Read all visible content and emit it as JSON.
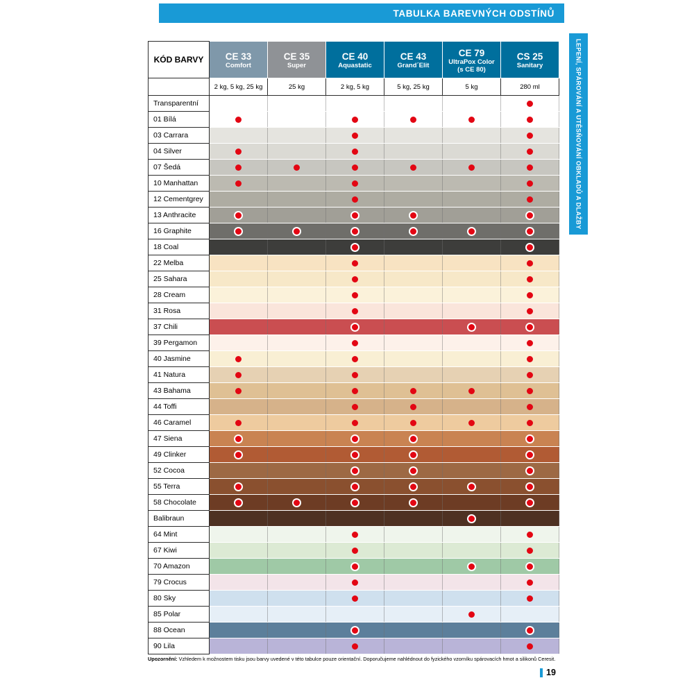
{
  "banner": {
    "title": "TABULKA BAREVNÝCH ODSTÍNŮ"
  },
  "side_tab": {
    "text": "LEPENÍ, SPÁROVÁNÍ A UTĚSŇOVÁNÍ OBKLADŮ A DLAŽBY"
  },
  "table": {
    "corner_header": "KÓD BARVY",
    "columns": [
      {
        "code": "CE 33",
        "name": "Comfort",
        "sub": "",
        "package": "2 kg, 5 kg, 25 kg",
        "header_bg": "#7f98aa"
      },
      {
        "code": "CE 35",
        "name": "Super",
        "sub": "",
        "package": "25 kg",
        "header_bg": "#8f9296"
      },
      {
        "code": "CE 40",
        "name": "Aquastatic",
        "sub": "",
        "package": "2 kg, 5 kg",
        "header_bg": "#006f9d"
      },
      {
        "code": "CE 43",
        "name": "Grand´Elit",
        "sub": "",
        "package": "5 kg, 25 kg",
        "header_bg": "#006f9d"
      },
      {
        "code": "CE 79",
        "name": "UltraPox Color",
        "sub": "(s CE 80)",
        "package": "5 kg",
        "header_bg": "#006f9d"
      },
      {
        "code": "CS 25",
        "name": "Sanitary",
        "sub": "",
        "package": "280 ml",
        "header_bg": "#006f9d"
      }
    ],
    "rows": [
      {
        "name": "Transparentní",
        "color": "#ffffff",
        "dots": [
          0,
          0,
          0,
          0,
          0,
          1
        ],
        "ring": false
      },
      {
        "name": "01 Bílá",
        "color": "#ffffff",
        "dots": [
          1,
          0,
          1,
          1,
          1,
          1
        ],
        "ring": false
      },
      {
        "name": "03 Carrara",
        "color": "#e5e4df",
        "dots": [
          0,
          0,
          1,
          0,
          0,
          1
        ],
        "ring": false
      },
      {
        "name": "04 Silver",
        "color": "#dbdad4",
        "dots": [
          1,
          0,
          1,
          0,
          0,
          1
        ],
        "ring": false
      },
      {
        "name": "07 Šedá",
        "color": "#c7c6c0",
        "dots": [
          1,
          1,
          1,
          1,
          1,
          1
        ],
        "ring": false
      },
      {
        "name": "10 Manhattan",
        "color": "#bcbab1",
        "dots": [
          1,
          0,
          1,
          0,
          0,
          1
        ],
        "ring": false
      },
      {
        "name": "12 Cementgrey",
        "color": "#aeaca2",
        "dots": [
          0,
          0,
          1,
          0,
          0,
          1
        ],
        "ring": false
      },
      {
        "name": "13 Anthracite",
        "color": "#a19f97",
        "dots": [
          1,
          0,
          1,
          1,
          0,
          1
        ],
        "ring": true
      },
      {
        "name": "16 Graphite",
        "color": "#6f6e6a",
        "dots": [
          1,
          1,
          1,
          1,
          1,
          1
        ],
        "ring": true
      },
      {
        "name": "18 Coal",
        "color": "#3d3d3b",
        "dots": [
          0,
          0,
          1,
          0,
          0,
          1
        ],
        "ring": true
      },
      {
        "name": "22 Melba",
        "color": "#f8e3c2",
        "dots": [
          0,
          0,
          1,
          0,
          0,
          1
        ],
        "ring": false
      },
      {
        "name": "25 Sahara",
        "color": "#f7e8c8",
        "dots": [
          0,
          0,
          1,
          0,
          0,
          1
        ],
        "ring": false
      },
      {
        "name": "28 Cream",
        "color": "#fbf2da",
        "dots": [
          0,
          0,
          1,
          0,
          0,
          1
        ],
        "ring": false
      },
      {
        "name": "31 Rosa",
        "color": "#fae5db",
        "dots": [
          0,
          0,
          1,
          0,
          0,
          1
        ],
        "ring": false
      },
      {
        "name": "37 Chili",
        "color": "#ca4e51",
        "dots": [
          0,
          0,
          1,
          0,
          1,
          1
        ],
        "ring": true
      },
      {
        "name": "39 Pergamon",
        "color": "#fdf1ea",
        "dots": [
          0,
          0,
          1,
          0,
          0,
          1
        ],
        "ring": false
      },
      {
        "name": "40 Jasmine",
        "color": "#f9efd4",
        "dots": [
          1,
          0,
          1,
          0,
          0,
          1
        ],
        "ring": false
      },
      {
        "name": "41 Natura",
        "color": "#e6d1b3",
        "dots": [
          1,
          0,
          1,
          0,
          0,
          1
        ],
        "ring": false
      },
      {
        "name": "43 Bahama",
        "color": "#dfc094",
        "dots": [
          1,
          0,
          1,
          1,
          1,
          1
        ],
        "ring": false
      },
      {
        "name": "44 Toffi",
        "color": "#d6b28a",
        "dots": [
          0,
          0,
          1,
          1,
          0,
          1
        ],
        "ring": false
      },
      {
        "name": "46 Caramel",
        "color": "#eecb9f",
        "dots": [
          1,
          0,
          1,
          1,
          1,
          1
        ],
        "ring": false
      },
      {
        "name": "47 Siena",
        "color": "#c98352",
        "dots": [
          1,
          0,
          1,
          1,
          0,
          1
        ],
        "ring": true
      },
      {
        "name": "49 Clinker",
        "color": "#b15b34",
        "dots": [
          1,
          0,
          1,
          1,
          0,
          1
        ],
        "ring": true
      },
      {
        "name": "52 Cocoa",
        "color": "#9d6944",
        "dots": [
          0,
          0,
          1,
          1,
          0,
          1
        ],
        "ring": true
      },
      {
        "name": "55 Terra",
        "color": "#8a502f",
        "dots": [
          1,
          0,
          1,
          1,
          1,
          1
        ],
        "ring": true
      },
      {
        "name": "58 Chocolate",
        "color": "#6d3c24",
        "dots": [
          1,
          1,
          1,
          1,
          0,
          1
        ],
        "ring": true
      },
      {
        "name": "Balibraun",
        "color": "#4e3122",
        "dots": [
          0,
          0,
          0,
          0,
          1,
          0
        ],
        "ring": true
      },
      {
        "name": "64 Mint",
        "color": "#eff5ec",
        "dots": [
          0,
          0,
          1,
          0,
          0,
          1
        ],
        "ring": false
      },
      {
        "name": "67 Kiwi",
        "color": "#dcead4",
        "dots": [
          0,
          0,
          1,
          0,
          0,
          1
        ],
        "ring": false
      },
      {
        "name": "70 Amazon",
        "color": "#9fc9a6",
        "dots": [
          0,
          0,
          1,
          0,
          1,
          1
        ],
        "ring": true
      },
      {
        "name": "79 Crocus",
        "color": "#f3e4e9",
        "dots": [
          0,
          0,
          1,
          0,
          0,
          1
        ],
        "ring": false
      },
      {
        "name": "80 Sky",
        "color": "#cfe0ee",
        "dots": [
          0,
          0,
          1,
          0,
          0,
          1
        ],
        "ring": false
      },
      {
        "name": "85 Polar",
        "color": "#e6eff7",
        "dots": [
          0,
          0,
          0,
          0,
          1,
          0
        ],
        "ring": false
      },
      {
        "name": "88 Ocean",
        "color": "#5c7f9b",
        "dots": [
          0,
          0,
          1,
          0,
          0,
          1
        ],
        "ring": true
      },
      {
        "name": "90 Lila",
        "color": "#b9b4d8",
        "dots": [
          0,
          0,
          1,
          0,
          0,
          1
        ],
        "ring": false
      }
    ]
  },
  "note": {
    "label": "Upozornění:",
    "text": " Vzhledem k možnostem tisku jsou barvy uvedené v této tabulce pouze orientační. Doporučujeme nahlédnout do fyzického vzorníku spárovacích hmot a silikonů Ceresit."
  },
  "footer": {
    "page_number": "19"
  },
  "colors": {
    "accent_blue": "#199ad6",
    "dot_red": "#e30613"
  }
}
